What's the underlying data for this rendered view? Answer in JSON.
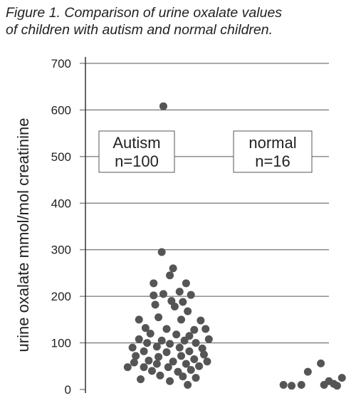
{
  "caption": {
    "line1": "Figure 1. Comparison of urine oxalate values",
    "line2": "of children with autism and normal children."
  },
  "chart_data": {
    "type": "scatter",
    "ylabel": "urine oxalate mmol/mol creatinine",
    "ylim": [
      0,
      700
    ],
    "yticks": [
      "0",
      "100",
      "200",
      "300",
      "400",
      "500",
      "600",
      "700"
    ],
    "grid": true,
    "dot_color": "#555555",
    "series": [
      {
        "label_line1": "Autism",
        "label_line2": "n=100",
        "points": [
          [
            0.98,
            608
          ],
          [
            0.97,
            295
          ],
          [
            1.04,
            260
          ],
          [
            1.02,
            245
          ],
          [
            0.92,
            228
          ],
          [
            1.12,
            228
          ],
          [
            0.98,
            205
          ],
          [
            1.15,
            203
          ],
          [
            0.92,
            202
          ],
          [
            1.08,
            210
          ],
          [
            1.03,
            190
          ],
          [
            1.1,
            188
          ],
          [
            0.93,
            182
          ],
          [
            1.05,
            178
          ],
          [
            1.13,
            168
          ],
          [
            0.95,
            155
          ],
          [
            0.83,
            150
          ],
          [
            1.09,
            150
          ],
          [
            1.21,
            148
          ],
          [
            0.87,
            132
          ],
          [
            1.0,
            130
          ],
          [
            1.17,
            128
          ],
          [
            1.24,
            130
          ],
          [
            0.9,
            120
          ],
          [
            1.06,
            118
          ],
          [
            1.14,
            115
          ],
          [
            0.83,
            108
          ],
          [
            0.97,
            105
          ],
          [
            1.11,
            105
          ],
          [
            1.26,
            108
          ],
          [
            0.88,
            100
          ],
          [
            1.02,
            98
          ],
          [
            1.18,
            100
          ],
          [
            0.79,
            90
          ],
          [
            0.94,
            92
          ],
          [
            1.08,
            90
          ],
          [
            1.22,
            88
          ],
          [
            0.86,
            82
          ],
          [
            1.0,
            80
          ],
          [
            1.14,
            82
          ],
          [
            0.81,
            72
          ],
          [
            0.95,
            70
          ],
          [
            1.09,
            72
          ],
          [
            1.23,
            75
          ],
          [
            0.89,
            62
          ],
          [
            1.04,
            60
          ],
          [
            1.17,
            65
          ],
          [
            0.8,
            58
          ],
          [
            0.94,
            55
          ],
          [
            1.12,
            55
          ],
          [
            1.25,
            60
          ],
          [
            0.86,
            48
          ],
          [
            0.76,
            48
          ],
          [
            1.01,
            48
          ],
          [
            1.2,
            50
          ],
          [
            0.91,
            40
          ],
          [
            1.07,
            38
          ],
          [
            1.15,
            42
          ],
          [
            0.96,
            30
          ],
          [
            0.84,
            22
          ],
          [
            1.1,
            28
          ],
          [
            1.18,
            25
          ],
          [
            1.02,
            18
          ],
          [
            1.13,
            10
          ]
        ]
      },
      {
        "label_line1": "normal",
        "label_line2": "n=16",
        "points": [
          [
            1.72,
            10
          ],
          [
            1.77,
            8
          ],
          [
            1.83,
            10
          ],
          [
            1.87,
            38
          ],
          [
            1.95,
            56
          ],
          [
            1.97,
            10
          ],
          [
            2.0,
            18
          ],
          [
            2.03,
            12
          ],
          [
            2.08,
            25
          ],
          [
            2.05,
            8
          ]
        ]
      }
    ]
  }
}
